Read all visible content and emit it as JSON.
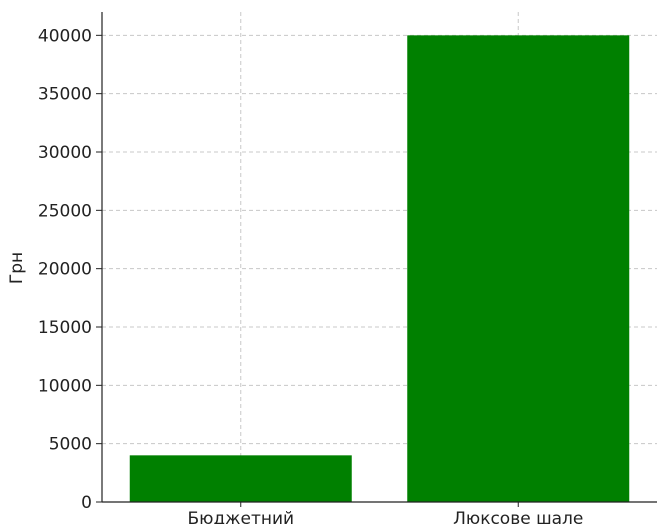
{
  "chart_data": {
    "type": "bar",
    "title": "",
    "xlabel": "",
    "ylabel": "Грн",
    "categories": [
      "Бюджетний",
      "Люксове шале"
    ],
    "values": [
      4000,
      40000
    ],
    "ylim": [
      0,
      42000
    ],
    "yticks": [
      0,
      5000,
      10000,
      15000,
      20000,
      25000,
      30000,
      35000,
      40000
    ],
    "grid": true,
    "legend": "none",
    "bar_color": "#008000"
  }
}
